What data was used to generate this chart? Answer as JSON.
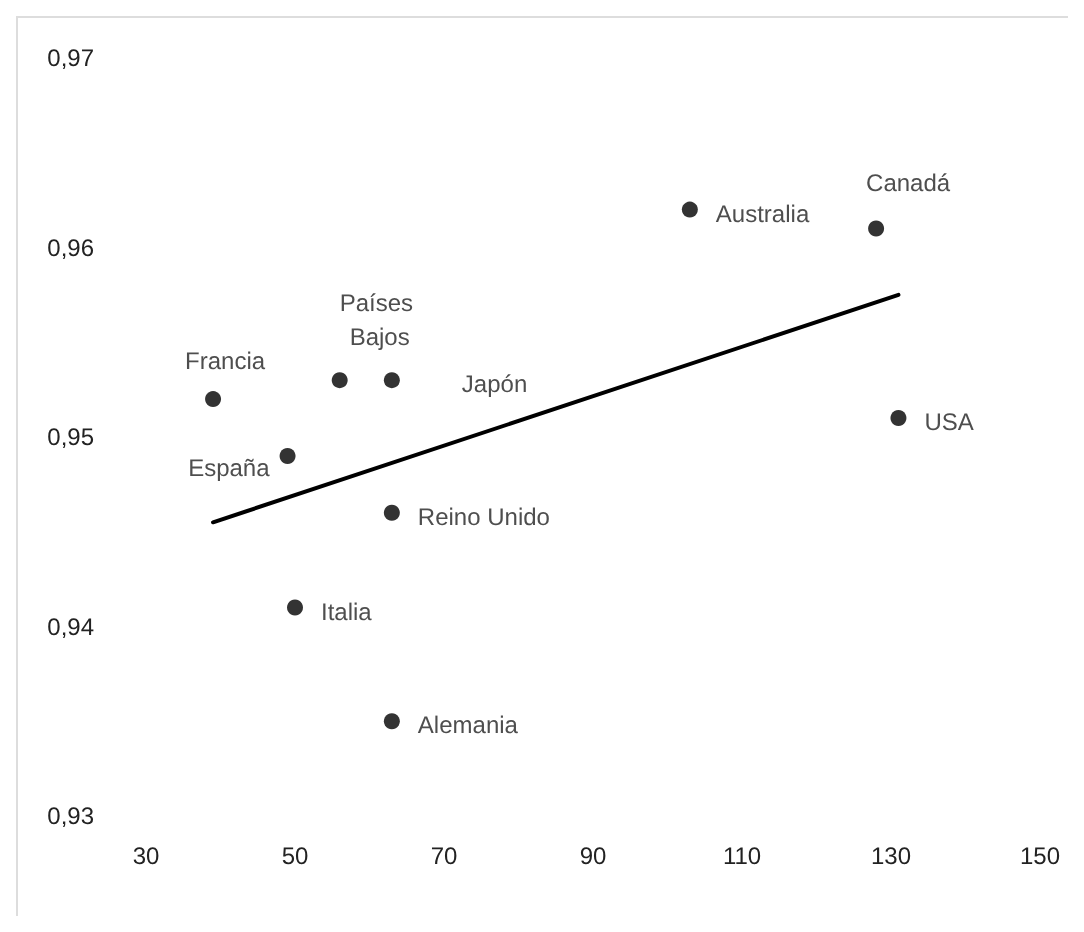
{
  "chart_data": {
    "type": "scatter",
    "series": [
      {
        "color": "#000000",
        "marker": "circle",
        "x": [
          39,
          49,
          56,
          63,
          63,
          50,
          63,
          103,
          128,
          131
        ],
        "values": [
          0.952,
          0.949,
          0.953,
          0.953,
          0.946,
          0.941,
          0.935,
          0.962,
          0.961,
          0.951
        ]
      },
      {
        "type": "line",
        "color": "#000000",
        "line_style": "solid",
        "marker": "none",
        "x": [
          39,
          131
        ],
        "values": [
          0.9455,
          0.9575
        ]
      }
    ],
    "annotations": [
      {
        "text": "Francia",
        "x": 39,
        "y": 0.952
      },
      {
        "text": "España",
        "x": 49,
        "y": 0.949
      },
      {
        "text": "Países Bajos",
        "x": 56,
        "y": 0.953
      },
      {
        "text": "Japón",
        "x": 63,
        "y": 0.953
      },
      {
        "text": "Reino Unido",
        "x": 63,
        "y": 0.946
      },
      {
        "text": "Italia",
        "x": 50,
        "y": 0.941
      },
      {
        "text": "Alemania",
        "x": 63,
        "y": 0.935
      },
      {
        "text": "Australia",
        "x": 103,
        "y": 0.962
      },
      {
        "text": "Canadá",
        "x": 128,
        "y": 0.961
      },
      {
        "text": "USA",
        "x": 131,
        "y": 0.951
      }
    ],
    "xlim": [
      30,
      150
    ],
    "xticks": [
      30,
      50,
      70,
      90,
      110,
      130,
      150
    ],
    "ylim": [
      0.93,
      0.97
    ],
    "yticks": [
      {
        "value": 0.93,
        "label": "0,93"
      },
      {
        "value": 0.94,
        "label": "0,94"
      },
      {
        "value": 0.95,
        "label": "0,95"
      },
      {
        "value": 0.96,
        "label": "0,96"
      },
      {
        "value": 0.97,
        "label": "0,97"
      }
    ],
    "grid": false
  }
}
